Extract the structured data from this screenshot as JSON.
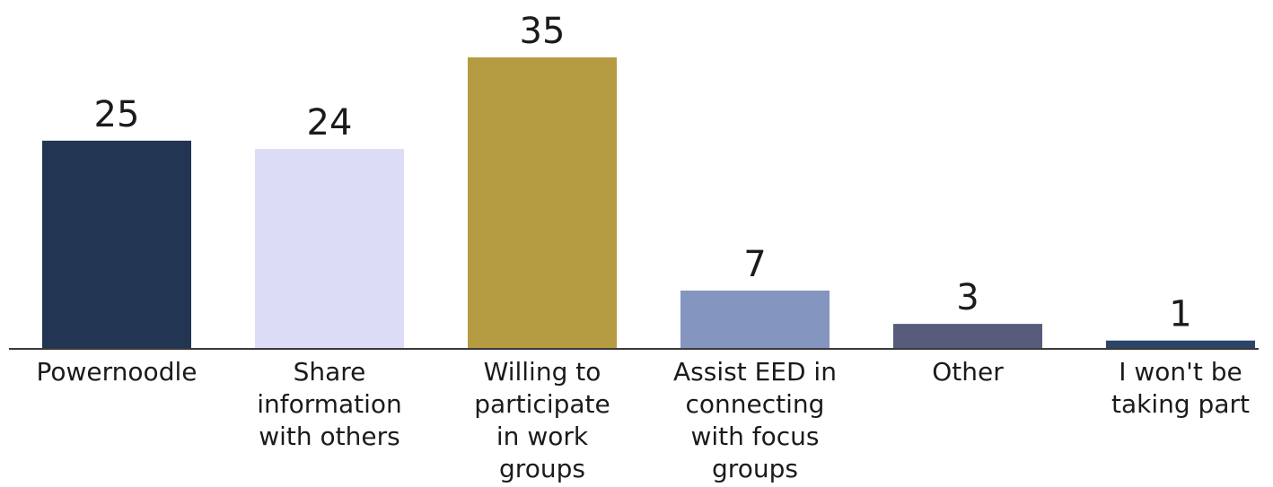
{
  "chart_data": {
    "type": "bar",
    "title": "",
    "xlabel": "",
    "ylabel": "",
    "categories": [
      [
        "Powernoodle"
      ],
      [
        "Share",
        "information",
        "with others"
      ],
      [
        "Willing to",
        "participate",
        "in work",
        "groups"
      ],
      [
        "Assist EED in",
        "connecting",
        "with focus",
        "groups"
      ],
      [
        "Other"
      ],
      [
        "I won't be",
        "taking part"
      ]
    ],
    "values": [
      25,
      24,
      35,
      7,
      3,
      1
    ],
    "value_labels": [
      "25",
      "24",
      "35",
      "7",
      "3",
      "1"
    ],
    "colors": [
      "#223552",
      "#dcdcf7",
      "#b59b42",
      "#8496bf",
      "#575c7d",
      "#2c4467"
    ],
    "ylim": [
      0,
      35
    ],
    "grid": false,
    "legend": "none"
  }
}
